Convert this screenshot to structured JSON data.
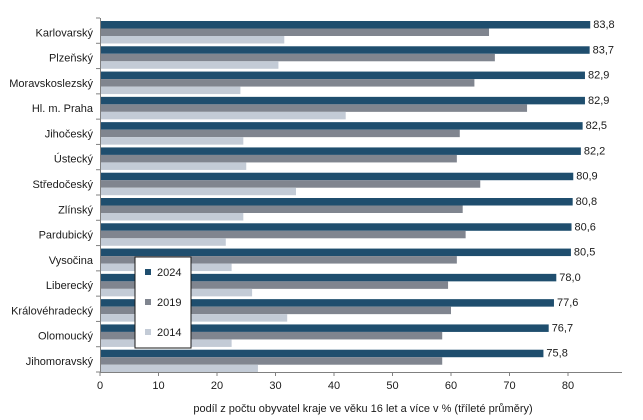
{
  "chart_data": {
    "type": "bar",
    "orientation": "horizontal",
    "categories": [
      "Karlovarský",
      "Plzeňský",
      "Moravskoslezský",
      "Hl. m. Praha",
      "Jihočeský",
      "Ústecký",
      "Středočeský",
      "Zlínský",
      "Pardubický",
      "Vysočina",
      "Liberecký",
      "Královéhradecký",
      "Olomoucký",
      "Jihomoravský"
    ],
    "series": [
      {
        "name": "2024",
        "color": "#1f4e6e",
        "values": [
          83.8,
          83.7,
          82.9,
          82.9,
          82.5,
          82.2,
          80.9,
          80.8,
          80.6,
          80.5,
          78.0,
          77.6,
          76.7,
          75.8
        ],
        "labels": [
          "83,8",
          "83,7",
          "82,9",
          "82,9",
          "82,5",
          "82,2",
          "80,9",
          "80,8",
          "80,6",
          "80,5",
          "78,0",
          "77,6",
          "76,7",
          "75,8"
        ]
      },
      {
        "name": "2019",
        "color": "#80858f",
        "values": [
          66.5,
          67.5,
          64.0,
          73.0,
          61.5,
          61.0,
          65.0,
          62.0,
          62.5,
          61.0,
          59.5,
          60.0,
          58.5,
          58.5
        ]
      },
      {
        "name": "2014",
        "color": "#c3cbd6",
        "values": [
          31.5,
          30.5,
          24.0,
          42.0,
          24.5,
          25.0,
          33.5,
          24.5,
          21.5,
          22.5,
          26.0,
          32.0,
          22.5,
          27.0
        ]
      }
    ],
    "xlim": [
      0,
      90
    ],
    "xticks": [
      0,
      10,
      20,
      30,
      40,
      50,
      60,
      70,
      80
    ],
    "xlabel": "podíl z počtu obyvatel kraje ve věku 16 let a více v % (tříleté průměry)",
    "ylabel": "",
    "title": "",
    "legend": {
      "entries": [
        "2024",
        "2019",
        "2014"
      ],
      "position": "bottom-left inside plot"
    },
    "grid": false
  }
}
